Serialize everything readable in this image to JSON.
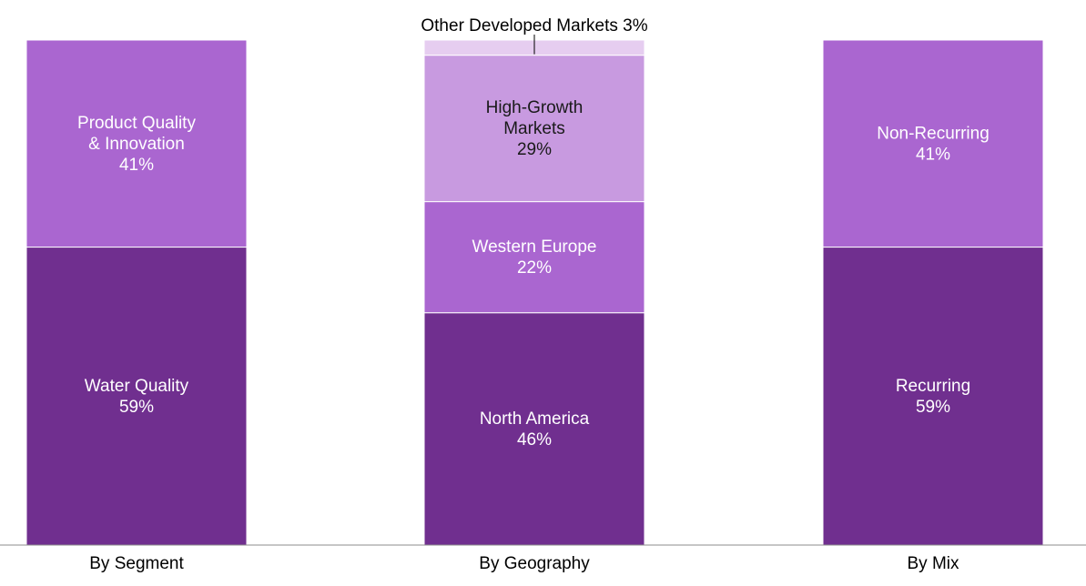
{
  "chart_data": {
    "type": "bar",
    "stacked": true,
    "percent": true,
    "title": "",
    "xlabel": "",
    "ylabel": "",
    "ylim": [
      0,
      100
    ],
    "grid": false,
    "legend": "none",
    "categories": [
      {
        "label": "By Segment",
        "segments": [
          {
            "name": "Water Quality",
            "lines": [
              "Water Quality"
            ],
            "value": 59,
            "value_label": "59%",
            "color": "#702f8f",
            "text_color": "#ffffff"
          },
          {
            "name": "Product Quality & Innovation",
            "lines": [
              "Product Quality",
              "& Innovation"
            ],
            "value": 41,
            "value_label": "41%",
            "color": "#aa66d0",
            "text_color": "#ffffff"
          }
        ]
      },
      {
        "label": "By Geography",
        "segments": [
          {
            "name": "North America",
            "lines": [
              "North America"
            ],
            "value": 46,
            "value_label": "46%",
            "color": "#702f8f",
            "text_color": "#ffffff"
          },
          {
            "name": "Western Europe",
            "lines": [
              "Western Europe"
            ],
            "value": 22,
            "value_label": "22%",
            "color": "#aa66d0",
            "text_color": "#ffffff"
          },
          {
            "name": "High-Growth Markets",
            "lines": [
              "High-Growth",
              "Markets"
            ],
            "value": 29,
            "value_label": "29%",
            "color": "#c89ae0",
            "text_color": "#1a1a1a"
          },
          {
            "name": "Other Developed Markets",
            "lines": [],
            "value": 3,
            "value_label": "3%",
            "color": "#e6cdf0",
            "text_color": "#000000",
            "callout": "Other Developed Markets  3%"
          }
        ]
      },
      {
        "label": "By Mix",
        "segments": [
          {
            "name": "Recurring",
            "lines": [
              "Recurring"
            ],
            "value": 59,
            "value_label": "59%",
            "color": "#702f8f",
            "text_color": "#ffffff"
          },
          {
            "name": "Non-Recurring",
            "lines": [
              "Non-Recurring"
            ],
            "value": 41,
            "value_label": "41%",
            "color": "#aa66d0",
            "text_color": "#ffffff"
          }
        ]
      }
    ]
  },
  "colors": {
    "dark_purple": "#702f8f",
    "medium_purple": "#aa66d0",
    "light_purple": "#c89ae0",
    "pale_purple": "#e6cdf0",
    "axis_line": "#8c8c8c",
    "segment_divider": "#ffffff"
  }
}
